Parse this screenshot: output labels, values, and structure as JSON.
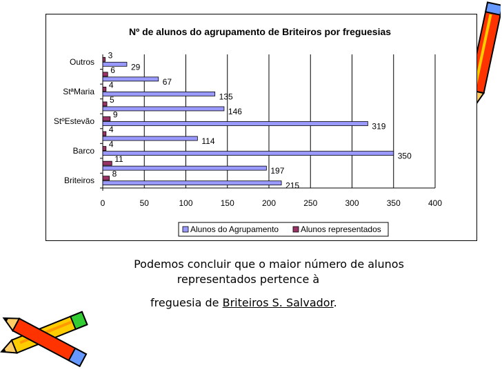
{
  "caption": {
    "line1": "Podemos concluir que o maior número de alunos",
    "line2": "representados pertence à",
    "line3_prefix": "freguesia de ",
    "line3_link": "Briteiros S. Salvador",
    "line3_suffix": "."
  },
  "colors": {
    "series1": "#9999ff",
    "series2": "#993366",
    "frame": "#000000",
    "grid": "#000000"
  },
  "decorations": [
    "pencil-icon",
    "pencil-icon"
  ],
  "chart_data": {
    "type": "bar",
    "orientation": "horizontal",
    "title": "Nº de alunos do agrupamento de Briteiros por freguesias",
    "categories": [
      "Briteiros",
      "",
      "Barco",
      "",
      "StºEstevão",
      "",
      "StªMaria",
      "",
      "Outros"
    ],
    "series": [
      {
        "name": "Alunos do Agrupamento",
        "values": [
          215,
          197,
          350,
          114,
          319,
          146,
          135,
          67,
          29
        ]
      },
      {
        "name": "Alunos representados",
        "values": [
          8,
          11,
          4,
          4,
          9,
          5,
          4,
          6,
          3
        ]
      }
    ],
    "xlim": [
      0,
      400
    ],
    "xticks": [
      0,
      50,
      100,
      150,
      200,
      250,
      300,
      350,
      400
    ],
    "grid": "vertical",
    "legend": "bottom"
  }
}
